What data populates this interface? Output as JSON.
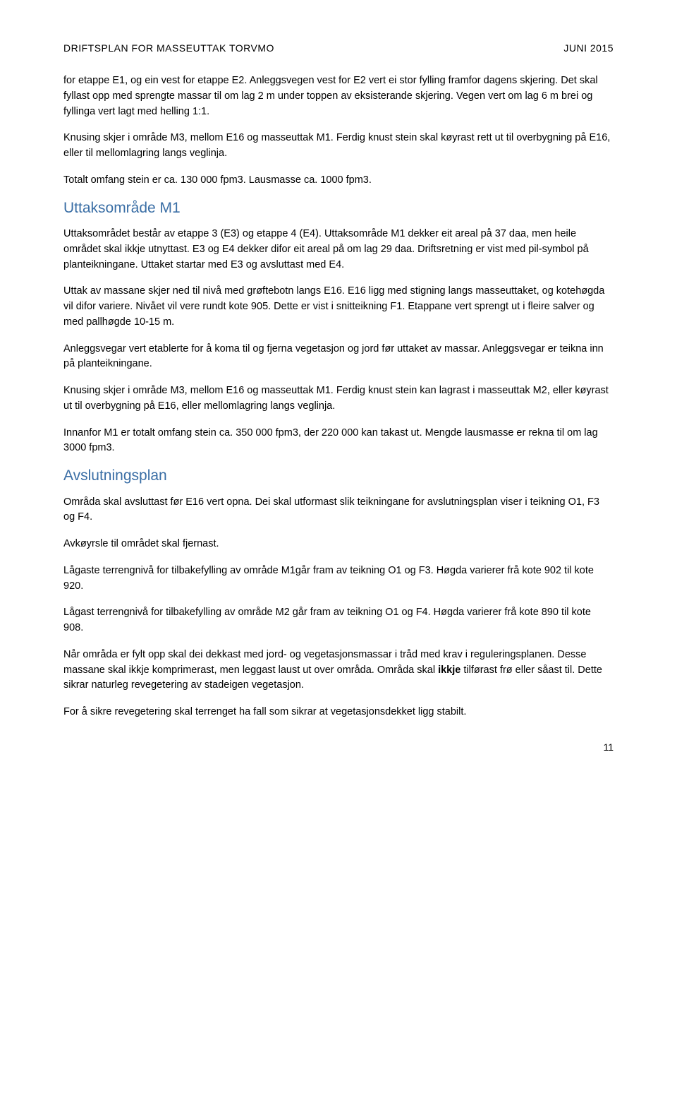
{
  "header": {
    "left": "DRIFTSPLAN FOR MASSEUTTAK TORVMO",
    "right": "JUNI 2015"
  },
  "paragraphs": {
    "p1": "for etappe E1, og ein vest for etappe E2. Anleggsvegen vest  for E2 vert ei stor fylling framfor dagens skjering. Det skal fyllast opp med sprengte massar til om lag 2 m under toppen av eksisterande skjering. Vegen vert om lag 6 m brei og fyllinga vert lagt med helling 1:1.",
    "p2": "Knusing skjer i område M3, mellom E16 og masseuttak M1. Ferdig knust stein skal køyrast rett ut til overbygning på E16, eller til mellomlagring langs veglinja.",
    "p3": "Totalt omfang stein er ca. 130 000 fpm3. Lausmasse ca. 1000 fpm3.",
    "p4": "Uttaksområdet består av etappe 3 (E3) og etappe 4 (E4). Uttaksområde M1 dekker eit areal på 37 daa, men heile området skal ikkje utnyttast. E3 og E4 dekker difor eit areal på om lag 29 daa. Driftsretning er vist med pil-symbol på planteikningane. Uttaket startar med E3 og avsluttast med E4.",
    "p5": "Uttak av massane skjer ned til nivå med grøftebotn langs E16. E16 ligg med stigning langs masseuttaket, og kotehøgda vil difor variere. Nivået vil vere rundt kote 905. Dette er vist i snitteikning F1. Etappane vert sprengt ut i fleire salver og med pallhøgde 10-15 m.",
    "p6": "Anleggsvegar vert etablerte for å koma til og fjerna vegetasjon og jord før uttaket av massar. Anleggsvegar er teikna inn på planteikningane.",
    "p7": "Knusing skjer i område M3, mellom E16 og masseuttak M1. Ferdig knust stein kan lagrast i masseuttak M2, eller køyrast ut til overbygning på E16, eller mellomlagring langs veglinja.",
    "p8": "Innanfor M1 er totalt omfang stein ca. 350 000 fpm3, der 220 000 kan takast ut. Mengde lausmasse er rekna til om lag 3000 fpm3.",
    "p9": "Områda skal avsluttast før E16 vert opna. Dei skal utformast slik teikningane for avslutningsplan viser i teikning O1, F3 og F4.",
    "p10": "Avkøyrsle til området skal fjernast.",
    "p11": "Lågaste terrengnivå for tilbakefylling av område M1går fram av teikning O1 og F3. Høgda varierer frå kote 902 til kote 920.",
    "p12": "Lågast terrengnivå for tilbakefylling av område M2 går fram av teikning O1 og F4. Høgda varierer frå kote 890 til kote 908.",
    "p13a": "Når områda er fylt opp skal dei dekkast med jord- og vegetasjonsmassar i tråd med krav i reguleringsplanen. Desse massane skal ikkje komprimerast, men leggast laust ut over områda. Områda skal ",
    "p13b": "ikkje",
    "p13c": " tilførast frø eller såast til. Dette sikrar naturleg revegetering av stadeigen vegetasjon.",
    "p14": "For å sikre revegetering skal terrenget ha fall som sikrar at vegetasjonsdekket ligg stabilt."
  },
  "headings": {
    "h1": "Uttaksområde M1",
    "h2": "Avslutningsplan"
  },
  "styling": {
    "heading_color": "#3a6ea5",
    "text_color": "#000000",
    "background_color": "#ffffff",
    "body_fontsize": 14.5,
    "heading_fontsize": 21,
    "header_fontsize": 14,
    "line_height": 1.5
  },
  "page_number": "11"
}
